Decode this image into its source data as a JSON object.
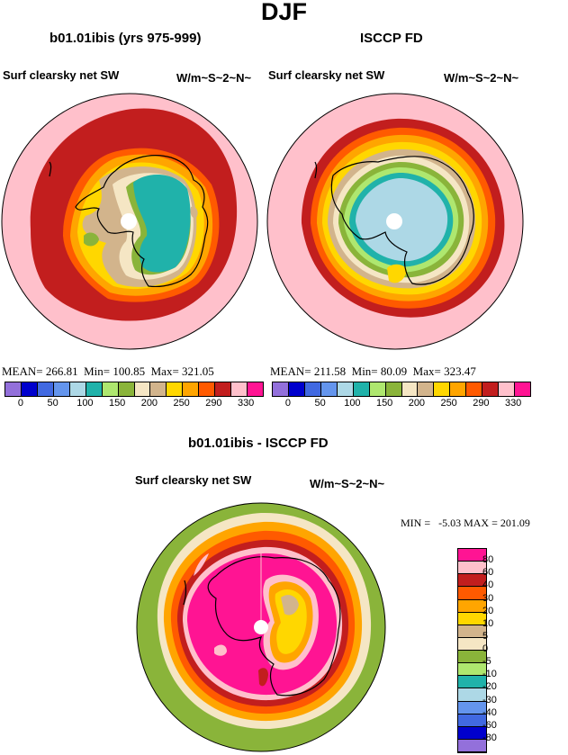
{
  "page_title": "DJF",
  "panels": {
    "left": {
      "title": "b01.01ibis (yrs 975-999)",
      "variable": "Surf clearsky net SW",
      "units": "W/m~S~2~N~",
      "mean_label": "MEAN=",
      "mean": "266.81",
      "min_label": "Min=",
      "min": "100.85",
      "max_label": "Max=",
      "max": "321.05"
    },
    "right": {
      "title": "ISCCP FD",
      "variable": "Surf clearsky net SW",
      "units": "W/m~S~2~N~",
      "mean_label": "MEAN=",
      "mean": "211.58",
      "min_label": "Min=",
      "min": "80.09",
      "max_label": "Max=",
      "max": "323.47"
    },
    "diff": {
      "title": "b01.01ibis - ISCCP FD",
      "variable": "Surf clearsky net SW",
      "units": "W/m~S~2~N~",
      "stats": "MIN =   -5.03 MAX = 201.09"
    }
  },
  "colorbars": {
    "absolute": {
      "colors": [
        "#9370db",
        "#0000cd",
        "#4169e1",
        "#6495ed",
        "#add8e6",
        "#20b2aa",
        "#aee76f",
        "#8ab43a",
        "#f5e6c4",
        "#d2b48c",
        "#ffd700",
        "#ffa500",
        "#ff5a00",
        "#c21e1e",
        "#ffc0cb",
        "#ff1493"
      ],
      "tick_labels": [
        "0",
        "50",
        "100",
        "150",
        "200",
        "250",
        "290",
        "330"
      ]
    },
    "difference": {
      "colors": [
        "#ff1493",
        "#ffc0cb",
        "#c21e1e",
        "#ff5a00",
        "#ffa500",
        "#ffd700",
        "#d2b48c",
        "#f5e6c4",
        "#8ab43a",
        "#aee76f",
        "#20b2aa",
        "#add8e6",
        "#6495ed",
        "#4169e1",
        "#0000cd",
        "#9370db"
      ],
      "labels": [
        "80",
        "60",
        "40",
        "30",
        "20",
        "10",
        "5",
        "0",
        "-5",
        "-10",
        "-20",
        "-30",
        "-40",
        "-60",
        "-80"
      ]
    }
  },
  "chart_data": [
    {
      "type": "heatmap",
      "projection": "south polar stereographic",
      "title": "b01.01ibis (yrs 975-999)",
      "variable": "Surf clearsky net SW",
      "units": "W/m~S~2~N~",
      "mean": 266.81,
      "min": 100.85,
      "max": 321.05,
      "contour_levels": [
        0,
        25,
        50,
        75,
        100,
        125,
        150,
        175,
        200,
        225,
        250,
        270,
        290,
        310,
        330
      ]
    },
    {
      "type": "heatmap",
      "projection": "south polar stereographic",
      "title": "ISCCP FD",
      "variable": "Surf clearsky net SW",
      "units": "W/m~S~2~N~",
      "mean": 211.58,
      "min": 80.09,
      "max": 323.47,
      "contour_levels": [
        0,
        25,
        50,
        75,
        100,
        125,
        150,
        175,
        200,
        225,
        250,
        270,
        290,
        310,
        330
      ]
    },
    {
      "type": "heatmap",
      "projection": "south polar stereographic",
      "title": "b01.01ibis - ISCCP FD",
      "variable": "Surf clearsky net SW",
      "units": "W/m~S~2~N~",
      "min": -5.03,
      "max": 201.09,
      "contour_levels": [
        -80,
        -60,
        -40,
        -30,
        -20,
        -10,
        -5,
        0,
        5,
        10,
        20,
        30,
        40,
        60,
        80
      ]
    }
  ]
}
